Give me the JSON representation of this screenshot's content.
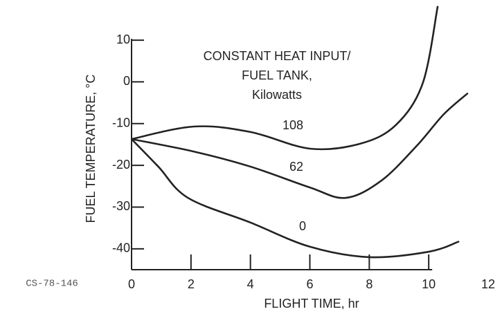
{
  "chart_data": {
    "type": "line",
    "annotation": [
      "CONSTANT HEAT INPUT/",
      "FUEL TANK,",
      "Kilowatts"
    ],
    "figure_id": "CS-78-146",
    "xlabel": "FLIGHT TIME, hr",
    "ylabel": "FUEL TEMPERATURE, °C",
    "xlim": [
      0,
      12
    ],
    "xticks": [
      0,
      2,
      4,
      6,
      8,
      10,
      12
    ],
    "ylim": [
      -45,
      12
    ],
    "yticks": [
      10,
      0,
      -10,
      -20,
      -30,
      -40
    ],
    "series": [
      {
        "name": "108",
        "color": "#222222",
        "x": [
          0,
          2.1,
          4,
          6,
          7.7,
          8.9,
          9.8,
          10.3
        ],
        "values": [
          -13.7,
          -10.7,
          -12,
          -16,
          -14.8,
          -10.3,
          -0.3,
          18
        ]
      },
      {
        "name": "62",
        "color": "#222222",
        "x": [
          0,
          2.1,
          4,
          6,
          7.2,
          8.4,
          9.6,
          10.5,
          11.3
        ],
        "values": [
          -13.7,
          -16.7,
          -20.3,
          -25.3,
          -27.8,
          -23.7,
          -15.3,
          -7.8,
          -2.8
        ]
      },
      {
        "name": "0",
        "color": "#222222",
        "x": [
          0,
          0.9,
          1.9,
          4,
          6,
          8,
          10,
          11
        ],
        "values": [
          -13.7,
          -20.3,
          -27.8,
          -33.7,
          -39.5,
          -42,
          -40.7,
          -38.3
        ]
      }
    ]
  }
}
